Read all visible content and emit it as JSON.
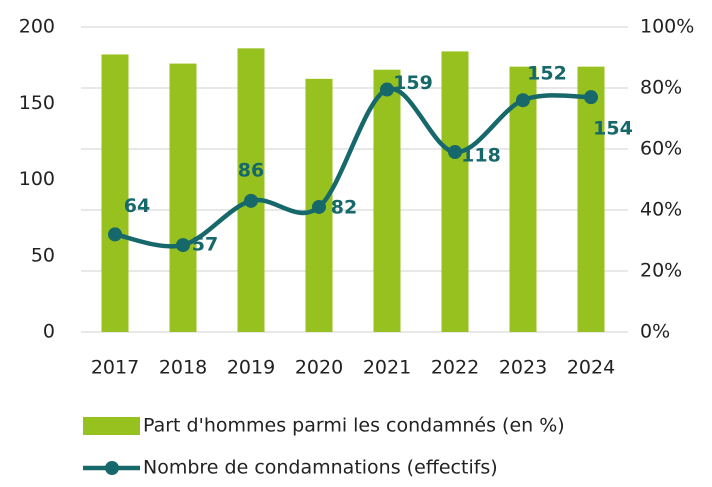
{
  "chart_data": {
    "type": "bar-line",
    "categories": [
      "2017",
      "2018",
      "2019",
      "2020",
      "2021",
      "2022",
      "2023",
      "2024"
    ],
    "series": [
      {
        "name": "Part d'hommes parmi les condamnés (en %)",
        "type": "bar",
        "axis": "y2",
        "color": "#96c11f",
        "values": [
          91,
          88,
          93,
          83,
          86,
          92,
          87,
          87
        ]
      },
      {
        "name": "Nombre de condamnations (effectifs)",
        "type": "line",
        "color": "#17686b",
        "values": [
          64,
          57,
          86,
          82,
          159,
          118,
          152,
          154
        ]
      }
    ],
    "ylim": [
      0,
      200
    ],
    "yticks": [
      0,
      50,
      100,
      150,
      200
    ],
    "y2lim": [
      0,
      100
    ],
    "y2ticks": [
      {
        "value": 0,
        "label": "0%"
      },
      {
        "value": 20,
        "label": "20%"
      },
      {
        "value": 40,
        "label": "40%"
      },
      {
        "value": 60,
        "label": "60%"
      },
      {
        "value": 80,
        "label": "80%"
      },
      {
        "value": 100,
        "label": "100%"
      }
    ],
    "grid": true,
    "legend": "bottom"
  }
}
